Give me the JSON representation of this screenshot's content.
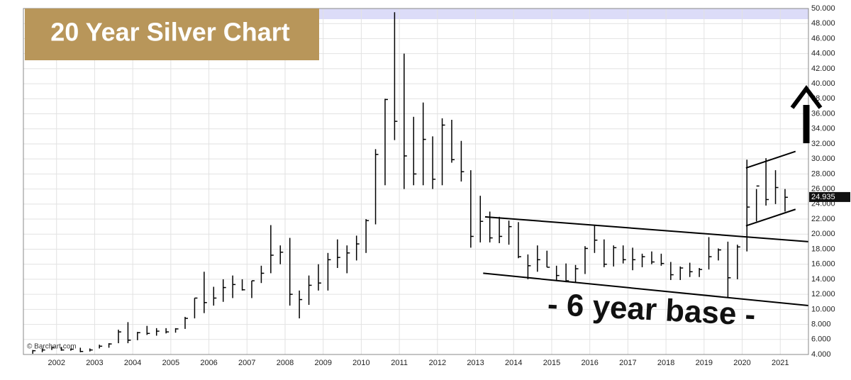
{
  "chart_data": {
    "type": "ohlc",
    "title": "20 Year Silver Chart",
    "annotation": "- 6 year base -",
    "source": "© Barchart.com",
    "last_price": 24.935,
    "color": "#000000",
    "grid": true,
    "xlim": [
      2001.63,
      2022.24
    ],
    "ylim": [
      4,
      50
    ],
    "xticks": [
      {
        "value": 2002.5,
        "label": "2002"
      },
      {
        "value": 2003.5,
        "label": "2003"
      },
      {
        "value": 2004.5,
        "label": "2004"
      },
      {
        "value": 2005.5,
        "label": "2005"
      },
      {
        "value": 2006.5,
        "label": "2006"
      },
      {
        "value": 2007.5,
        "label": "2007"
      },
      {
        "value": 2008.5,
        "label": "2008"
      },
      {
        "value": 2009.5,
        "label": "2009"
      },
      {
        "value": 2010.5,
        "label": "2010"
      },
      {
        "value": 2011.5,
        "label": "2011"
      },
      {
        "value": 2012.5,
        "label": "2012"
      },
      {
        "value": 2013.5,
        "label": "2013"
      },
      {
        "value": 2014.5,
        "label": "2014"
      },
      {
        "value": 2015.5,
        "label": "2015"
      },
      {
        "value": 2016.5,
        "label": "2016"
      },
      {
        "value": 2017.5,
        "label": "2017"
      },
      {
        "value": 2018.5,
        "label": "2018"
      },
      {
        "value": 2019.5,
        "label": "2019"
      },
      {
        "value": 2020.5,
        "label": "2020"
      },
      {
        "value": 2021.5,
        "label": "2021"
      }
    ],
    "yticks": [
      {
        "value": 4,
        "label": "4.000"
      },
      {
        "value": 6,
        "label": "6.000"
      },
      {
        "value": 8,
        "label": "8.000"
      },
      {
        "value": 10,
        "label": "10.000"
      },
      {
        "value": 12,
        "label": "12.000"
      },
      {
        "value": 14,
        "label": "14.000"
      },
      {
        "value": 16,
        "label": "16.000"
      },
      {
        "value": 18,
        "label": "18.000"
      },
      {
        "value": 20,
        "label": "20.000"
      },
      {
        "value": 22,
        "label": "22.000"
      },
      {
        "value": 24,
        "label": "24.000"
      },
      {
        "value": 26,
        "label": "26.000"
      },
      {
        "value": 28,
        "label": "28.000"
      },
      {
        "value": 30,
        "label": "30.000"
      },
      {
        "value": 32,
        "label": "32.000"
      },
      {
        "value": 34,
        "label": "34.000"
      },
      {
        "value": 36,
        "label": "36.000"
      },
      {
        "value": 38,
        "label": "38.000"
      },
      {
        "value": 40,
        "label": "40.000"
      },
      {
        "value": 42,
        "label": "42.000"
      },
      {
        "value": 44,
        "label": "44.000"
      },
      {
        "value": 46,
        "label": "46.000"
      },
      {
        "value": 48,
        "label": "48.000"
      },
      {
        "value": 50,
        "label": "50.000"
      }
    ],
    "x": [
      2001.875,
      2002.125,
      2002.375,
      2002.625,
      2002.875,
      2003.125,
      2003.375,
      2003.625,
      2003.875,
      2004.125,
      2004.375,
      2004.625,
      2004.875,
      2005.125,
      2005.375,
      2005.625,
      2005.875,
      2006.125,
      2006.375,
      2006.625,
      2006.875,
      2007.125,
      2007.375,
      2007.625,
      2007.875,
      2008.125,
      2008.375,
      2008.625,
      2008.875,
      2009.125,
      2009.375,
      2009.625,
      2009.875,
      2010.125,
      2010.375,
      2010.625,
      2010.875,
      2011.125,
      2011.375,
      2011.625,
      2011.875,
      2012.125,
      2012.375,
      2012.625,
      2012.875,
      2013.125,
      2013.375,
      2013.625,
      2013.875,
      2014.125,
      2014.375,
      2014.625,
      2014.875,
      2015.125,
      2015.375,
      2015.625,
      2015.875,
      2016.125,
      2016.375,
      2016.625,
      2016.875,
      2017.125,
      2017.375,
      2017.625,
      2017.875,
      2018.125,
      2018.375,
      2018.625,
      2018.875,
      2019.125,
      2019.375,
      2019.625,
      2019.875,
      2020.125,
      2020.375,
      2020.625,
      2020.875,
      2021.125,
      2021.375,
      2021.625
    ],
    "high": [
      4.6,
      4.8,
      5.1,
      5.0,
      4.8,
      4.9,
      4.8,
      5.3,
      5.5,
      7.3,
      8.3,
      7.0,
      7.8,
      7.5,
      7.5,
      7.5,
      9.0,
      11.5,
      15.0,
      13.0,
      14.0,
      14.5,
      14.0,
      13.8,
      15.8,
      21.2,
      18.5,
      19.5,
      12.5,
      14.5,
      16.0,
      17.5,
      19.3,
      18.5,
      19.8,
      22.0,
      31.3,
      38.0,
      49.5,
      44.0,
      35.6,
      37.5,
      33.0,
      35.4,
      35.2,
      32.4,
      28.5,
      25.1,
      23.0,
      22.3,
      21.8,
      21.6,
      17.3,
      18.5,
      17.8,
      15.8,
      16.1,
      15.9,
      18.4,
      21.2,
      19.3,
      18.5,
      18.5,
      18.2,
      17.4,
      17.7,
      17.4,
      16.3,
      15.7,
      16.2,
      15.5,
      19.6,
      18.1,
      19.0,
      18.6,
      29.9,
      26.0,
      30.1,
      28.5,
      26.0
    ],
    "low": [
      4.1,
      4.3,
      4.6,
      4.5,
      4.5,
      4.3,
      4.4,
      4.8,
      4.9,
      5.5,
      5.5,
      5.9,
      6.6,
      6.5,
      6.8,
      6.9,
      7.4,
      8.8,
      9.5,
      10.5,
      11.0,
      11.5,
      12.5,
      11.5,
      13.5,
      14.8,
      16.0,
      10.5,
      8.8,
      10.6,
      12.5,
      12.5,
      15.5,
      14.8,
      16.5,
      17.5,
      21.3,
      26.5,
      32.5,
      26.0,
      26.5,
      26.5,
      26.0,
      26.5,
      29.5,
      27.0,
      18.2,
      18.9,
      18.9,
      18.8,
      18.6,
      16.8,
      14.0,
      15.0,
      15.6,
      13.8,
      13.6,
      13.6,
      14.7,
      17.5,
      15.6,
      15.7,
      16.1,
      15.2,
      15.6,
      16.0,
      15.8,
      13.9,
      13.9,
      14.3,
      14.3,
      15.3,
      16.5,
      11.6,
      14.0,
      17.7,
      21.7,
      23.8,
      24.0,
      23.0
    ],
    "close": [
      4.5,
      4.6,
      4.9,
      4.6,
      4.7,
      4.4,
      4.6,
      5.1,
      5.4,
      7.0,
      5.9,
      6.9,
      6.8,
      7.1,
      7.0,
      7.4,
      8.8,
      11.5,
      10.9,
      11.5,
      12.9,
      13.3,
      12.6,
      13.8,
      14.8,
      17.2,
      17.6,
      12.0,
      11.3,
      13.2,
      13.5,
      16.6,
      16.9,
      17.5,
      18.7,
      21.8,
      30.6,
      37.9,
      35.0,
      30.4,
      28.0,
      32.6,
      27.3,
      34.5,
      29.9,
      28.3,
      19.7,
      21.7,
      19.5,
      19.7,
      21.0,
      17.0,
      15.8,
      16.6,
      15.6,
      14.5,
      13.8,
      15.4,
      18.1,
      19.2,
      16.0,
      18.2,
      16.6,
      16.6,
      17.0,
      16.3,
      16.1,
      14.6,
      15.5,
      15.0,
      15.3,
      17.0,
      17.9,
      14.2,
      18.3,
      23.6,
      26.4,
      24.6,
      26.2,
      24.9
    ],
    "trendlines": [
      {
        "x": [
          2013.75,
          2022.24
        ],
        "y": [
          22.3,
          19.0
        ]
      },
      {
        "x": [
          2013.7,
          2022.24
        ],
        "y": [
          14.8,
          10.5
        ]
      },
      {
        "x": [
          2020.6,
          2021.9
        ],
        "y": [
          28.8,
          31.0
        ]
      },
      {
        "x": [
          2020.6,
          2021.9
        ],
        "y": [
          21.1,
          23.3
        ]
      }
    ]
  }
}
